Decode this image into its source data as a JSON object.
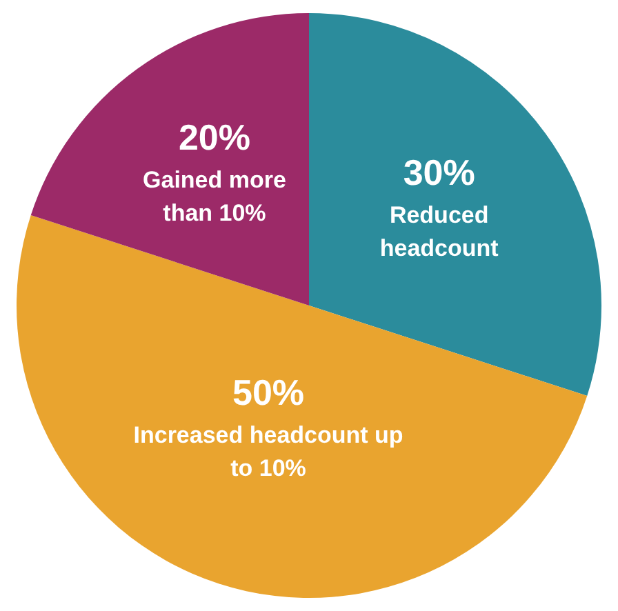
{
  "chart_data": {
    "type": "pie",
    "categories": [
      "Reduced headcount",
      "Increased headcount up to 10%",
      "Gained more than 10%"
    ],
    "values": [
      30,
      50,
      20
    ],
    "colors": [
      "#2b8c9c",
      "#e9a42f",
      "#9c2a68"
    ],
    "value_labels": [
      "30%",
      "50%",
      "20%"
    ],
    "legend": false
  }
}
